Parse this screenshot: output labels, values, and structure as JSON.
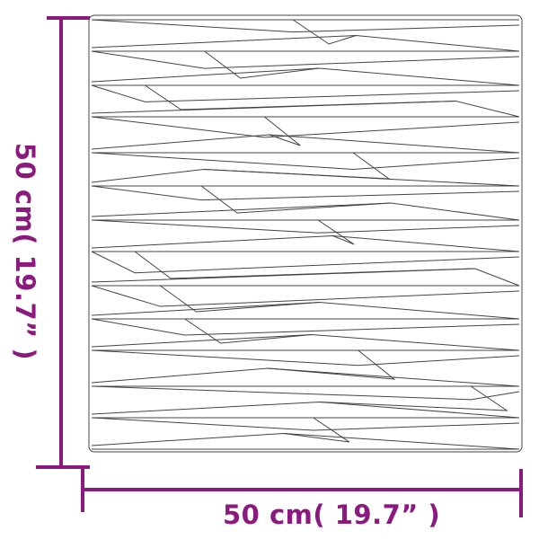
{
  "dimensions": {
    "width_label": "50 cm( 19.7”  )",
    "height_label": "50 cm( 19.7”  )"
  },
  "colors": {
    "dimension": "#8b1a7e",
    "panel_stroke": "#444444"
  }
}
